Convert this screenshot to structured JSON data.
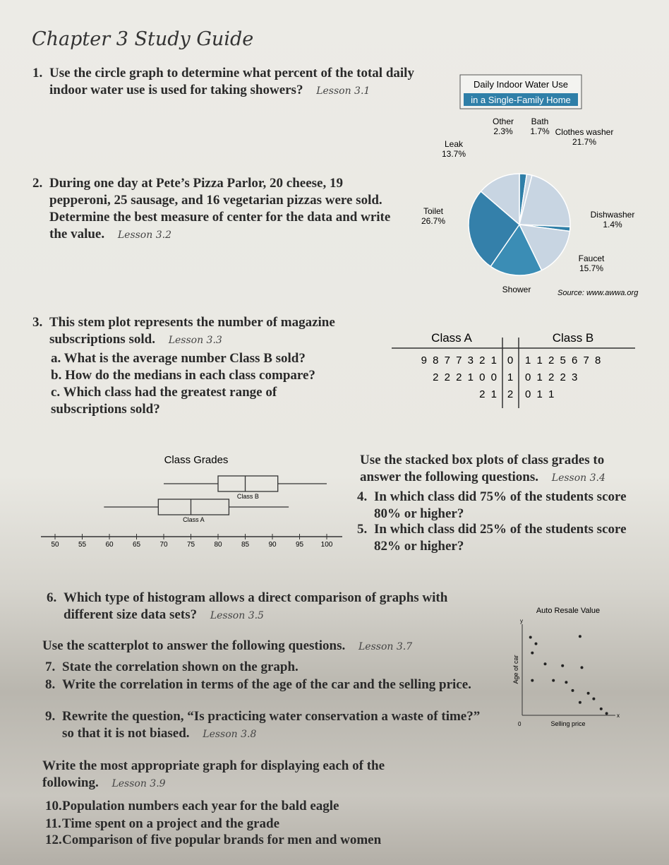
{
  "header": {
    "title": "Chapter 3 Study Guide"
  },
  "questions": [
    {
      "number": "1.",
      "text": "Use the circle graph to determine what percent of the total daily indoor water use is used for taking showers?",
      "lesson": "Lesson 3.1"
    },
    {
      "number": "2.",
      "text": "During one day at Pete’s Pizza Parlor, 20 cheese, 19 pepperoni, 25 sausage, and 16 vegetarian pizzas were sold. Determine the best measure of center for the data and write the value.",
      "lesson": "Lesson 3.2"
    },
    {
      "number": "3.",
      "text": "This stem plot represents the number of magazine subscriptions sold.",
      "lesson": "Lesson 3.3",
      "parts": [
        "a. What is the average number Class B sold?",
        "b. How do the medians in each class compare?",
        "c. Which class had the greatest range of subscriptions sold?"
      ]
    },
    {
      "number": "4.",
      "text": "In which class did 75% of the students score 80% or higher?"
    },
    {
      "number": "5.",
      "text": "In which class did 25% of the students score 82% or higher?"
    },
    {
      "number": "6.",
      "text": "Which type of histogram allows a direct comparison of graphs with different size data sets?",
      "lesson": "Lesson 3.5"
    },
    {
      "number": "7.",
      "text": "State the correlation shown on the graph."
    },
    {
      "number": "8.",
      "text": "Write the correlation in terms of the age of the car and the selling price."
    },
    {
      "number": "9.",
      "text": "Rewrite the question, “Is practicing water conservation a waste of time?” so that it is not biased.",
      "lesson": "Lesson 3.8"
    },
    {
      "number": "10.",
      "text": "Population numbers each year for the bald eagle"
    },
    {
      "number": "11.",
      "text": "Time spent on a project and the grade"
    },
    {
      "number": "12.",
      "text": "Comparison of five popular brands for men and women"
    }
  ],
  "instructions": [
    {
      "text": "Use the stacked box plots of class grades to answer the following questions.",
      "lesson": "Lesson 3.4"
    },
    {
      "text": "Use the scatterplot to answer the following questions.",
      "lesson": "Lesson 3.7"
    },
    {
      "text": "Write the most appropriate graph for displaying each of the following.",
      "lesson": "Lesson 3.9"
    }
  ],
  "pie": {
    "title": "Daily Indoor Water Use",
    "subtitle": "in a Single-Family Home",
    "source": "Source: www.awwa.org",
    "slices": [
      {
        "name": "Other",
        "value": 2.3,
        "label": "2.3%",
        "color": "#2f7fa8"
      },
      {
        "name": "Bath",
        "value": 1.7,
        "label": "1.7%",
        "color": "#c8d5e2"
      },
      {
        "name": "Clothes washer",
        "value": 21.7,
        "label": "21.7%",
        "color": "#c8d5e2"
      },
      {
        "name": "Dishwasher",
        "value": 1.4,
        "label": "1.4%",
        "color": "#2f7fa8"
      },
      {
        "name": "Faucet",
        "value": 15.7,
        "label": "15.7%",
        "color": "#c8d5e2"
      },
      {
        "name": "Shower",
        "value": 16.8,
        "color": "#3b8db5"
      },
      {
        "name": "Toilet",
        "value": 26.7,
        "label": "26.7%",
        "color": "#3480aa"
      },
      {
        "name": "Leak",
        "value": 13.7,
        "label": "13.7%",
        "color": "#c8d5e2"
      }
    ]
  },
  "stem_plot": {
    "headers": [
      "Class A",
      "Class B"
    ],
    "rows": [
      {
        "left": "9 8 7 7 3 2 1",
        "stem": 0,
        "right": "1 1 2 5 6 7 8"
      },
      {
        "left": "2 2 2 1 0 0",
        "stem": 1,
        "right": "0 1 2 2 3"
      },
      {
        "left": "2 1",
        "stem": 2,
        "right": "0 1 1"
      }
    ]
  },
  "box_plot": {
    "title": "Class Grades",
    "ticks": [
      50,
      55,
      60,
      65,
      70,
      75,
      80,
      85,
      90,
      95,
      100
    ],
    "boxes": [
      {
        "name": "Class B",
        "min": 70,
        "q1": 80,
        "median": 85,
        "q3": 91,
        "max": 100
      },
      {
        "name": "Class A",
        "min": 59,
        "q1": 69,
        "median": 75,
        "q3": 82,
        "max": 93
      }
    ]
  },
  "scatter": {
    "title": "Auto Resale Value",
    "x_label": "Selling price",
    "y_label": "Age of car",
    "y_axis": "y",
    "x_axis": "x",
    "origin": 0,
    "points": [
      {
        "x": 0.9,
        "y": 8.5
      },
      {
        "x": 1.5,
        "y": 7.8
      },
      {
        "x": 6.3,
        "y": 8.6
      },
      {
        "x": 1.1,
        "y": 6.8
      },
      {
        "x": 2.5,
        "y": 5.6
      },
      {
        "x": 4.4,
        "y": 5.4
      },
      {
        "x": 6.5,
        "y": 5.2
      },
      {
        "x": 1.1,
        "y": 3.8
      },
      {
        "x": 3.4,
        "y": 3.8
      },
      {
        "x": 4.8,
        "y": 3.6
      },
      {
        "x": 5.5,
        "y": 2.7
      },
      {
        "x": 7.2,
        "y": 2.4
      },
      {
        "x": 6.3,
        "y": 1.4
      },
      {
        "x": 7.8,
        "y": 1.8
      },
      {
        "x": 8.6,
        "y": 0.7
      },
      {
        "x": 9.2,
        "y": 0.2
      }
    ]
  }
}
